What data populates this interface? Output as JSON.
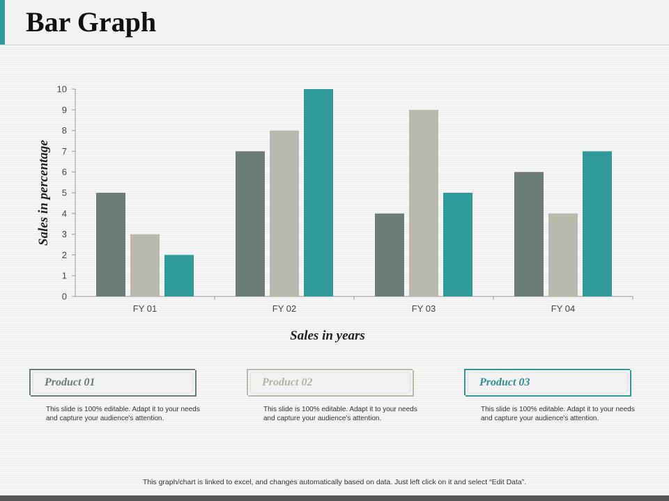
{
  "page": {
    "title": "Bar Graph",
    "footer_note": "This graph/chart is linked to excel,  and changes automatically based on data. Just left click on it and select “Edit Data”."
  },
  "colors": {
    "accent": "#2f9a9c",
    "product_01": "#6b7d75",
    "product_02": "#b9b9ad",
    "product_03": "#2f9a9c"
  },
  "chart_data": {
    "type": "bar",
    "categories": [
      "FY 01",
      "FY 02",
      "FY 03",
      "FY 04"
    ],
    "series": [
      {
        "values": [
          5,
          7,
          4,
          6
        ]
      },
      {
        "values": [
          3,
          8,
          9,
          4
        ]
      },
      {
        "values": [
          2,
          10,
          5,
          7
        ]
      }
    ],
    "title": "",
    "xlabel": "Sales in years",
    "ylabel": "Sales in percentage",
    "ylim": [
      0,
      10
    ],
    "yticks": [
      "0",
      "1",
      "2",
      "3",
      "4",
      "5",
      "6",
      "7",
      "8",
      "9",
      "10"
    ],
    "grid": false,
    "legend": "none"
  },
  "cards": [
    {
      "title": "Product 01",
      "text": "This slide is 100% editable.  Adapt it to your needs and capture your audience's attention."
    },
    {
      "title": "Product 02",
      "text": "This slide is 100% editable.  Adapt it to your needs and capture your audience's attention."
    },
    {
      "title": "Product 03",
      "text": "This slide is 100% editable.  Adapt it to your needs and capture your audience's attention."
    }
  ]
}
